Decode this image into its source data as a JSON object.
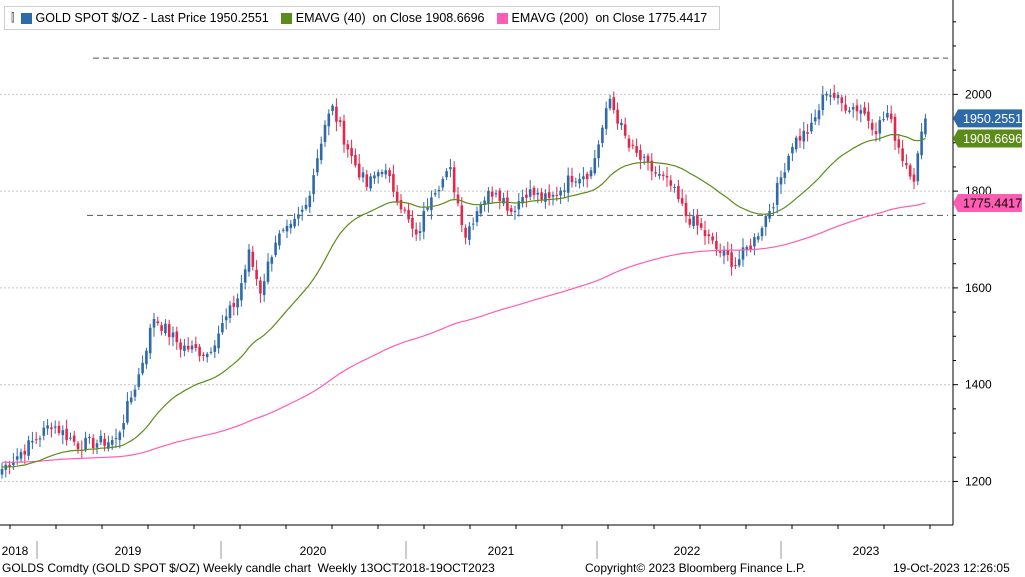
{
  "legend": {
    "icon": "candle-chart-icon",
    "gold_label": "GOLD SPOT $/OZ - Last Price 1950.2551",
    "ema40_label": "EMAVG (40)  on Close 1908.6696",
    "ema200_label": "EMAVG (200)  on Close 1775.4417"
  },
  "footer": {
    "left": "GOLDS Comdty (GOLD SPOT $/OZ) Weekly candle chart  Weekly 13OCT2018-19OCT2023",
    "center": "Copyright© 2023 Bloomberg Finance L.P.",
    "right": "19-Oct-2023 12:26:05"
  },
  "colors": {
    "up": "#2f6aa8",
    "down": "#e3264b",
    "ema40": "#5b8c1a",
    "ema200": "#ff5cb3",
    "label_price": "#2f6aa8",
    "label_ema40": "#5b8c1a",
    "label_ema200": "#ff5cb3"
  },
  "chart_data": {
    "type": "candlestick",
    "title": "GOLD SPOT $/OZ",
    "frequency": "Weekly",
    "x_range": [
      "2018-10-13",
      "2023-10-19"
    ],
    "x_labels": [
      "2018",
      "2019",
      "2020",
      "2021",
      "2022",
      "2023"
    ],
    "y_ticks": [
      1200,
      1400,
      1600,
      1800,
      2000
    ],
    "ylim": [
      1110,
      2195
    ],
    "reference_lines": [
      2075,
      1750
    ],
    "last_values": {
      "price": "1950.2551",
      "ema40": "1908.6696",
      "ema200": "1775.4417"
    },
    "series": [
      {
        "name": "GOLD SPOT $/OZ",
        "kind": "candle",
        "close_anchors": [
          [
            0,
            1226
          ],
          [
            10,
            1295
          ],
          [
            13,
            1320
          ],
          [
            20,
            1276
          ],
          [
            30,
            1285
          ],
          [
            36,
            1420
          ],
          [
            40,
            1540
          ],
          [
            47,
            1480
          ],
          [
            54,
            1465
          ],
          [
            62,
            1580
          ],
          [
            65,
            1670
          ],
          [
            68,
            1595
          ],
          [
            72,
            1700
          ],
          [
            76,
            1720
          ],
          [
            80,
            1770
          ],
          [
            85,
            1940
          ],
          [
            87,
            1970
          ],
          [
            92,
            1870
          ],
          [
            96,
            1810
          ],
          [
            100,
            1850
          ],
          [
            104,
            1790
          ],
          [
            109,
            1700
          ],
          [
            113,
            1800
          ],
          [
            118,
            1840
          ],
          [
            122,
            1710
          ],
          [
            126,
            1780
          ],
          [
            130,
            1805
          ],
          [
            134,
            1760
          ],
          [
            138,
            1800
          ],
          [
            144,
            1780
          ],
          [
            150,
            1830
          ],
          [
            155,
            1840
          ],
          [
            160,
            1990
          ],
          [
            165,
            1890
          ],
          [
            170,
            1850
          ],
          [
            176,
            1810
          ],
          [
            180,
            1750
          ],
          [
            184,
            1720
          ],
          [
            188,
            1680
          ],
          [
            193,
            1650
          ],
          [
            198,
            1700
          ],
          [
            203,
            1780
          ],
          [
            208,
            1900
          ],
          [
            213,
            1930
          ],
          [
            217,
            2010
          ],
          [
            221,
            1980
          ],
          [
            226,
            1970
          ],
          [
            230,
            1930
          ],
          [
            233,
            1960
          ],
          [
            237,
            1870
          ],
          [
            240,
            1830
          ],
          [
            243,
            1955
          ]
        ]
      },
      {
        "name": "EMAVG (40)",
        "kind": "line",
        "period": 40
      },
      {
        "name": "EMAVG (200)",
        "kind": "line",
        "period": 200
      }
    ]
  }
}
